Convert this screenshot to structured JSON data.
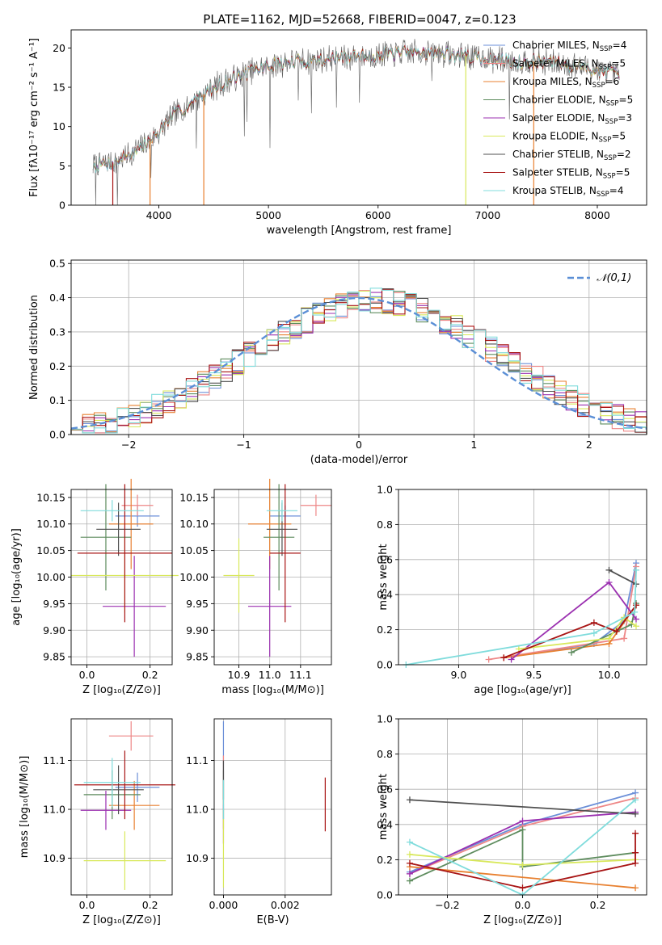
{
  "figure": {
    "title": "PLATE=1162, MJD=52668, FIBERID=0047, z=0.123"
  },
  "model_colors": [
    "#6b8fd8",
    "#ee8787",
    "#e88030",
    "#5e8c5e",
    "#9b30b0",
    "#d8e85a",
    "#505050",
    "#a81414",
    "#80dcdc"
  ],
  "chart_data": [
    {
      "id": "spectrum",
      "type": "line",
      "xlabel": "wavelength [Angstrom, rest frame]",
      "ylabel": "Flux [fλ10⁻¹⁷ erg cm⁻² s⁻¹ A⁻¹]",
      "xlim": [
        3200,
        8450
      ],
      "ylim": [
        0,
        22.3
      ],
      "xticks": [
        4000,
        5000,
        6000,
        7000,
        8000
      ],
      "yticks": [
        0,
        5,
        10,
        15,
        20
      ],
      "grid": false,
      "legend_position": "top-right",
      "series": [
        {
          "name": "Chabrier MILES, N_SSP=4",
          "legend_main": "Chabrier MILES, N",
          "legend_sub": "SSP",
          "legend_tail": "=4",
          "color": "#6b8fd8"
        },
        {
          "name": "Salpeter MILES, N_SSP=5",
          "legend_main": "Salpeter MILES, N",
          "legend_sub": "SSP",
          "legend_tail": "=5",
          "color": "#ee8787"
        },
        {
          "name": "Kroupa MILES, N_SSP=6",
          "legend_main": "Kroupa MILES, N",
          "legend_sub": "SSP",
          "legend_tail": "=6",
          "color": "#e88030"
        },
        {
          "name": "Chabrier ELODIE, N_SSP=5",
          "legend_main": "Chabrier ELODIE, N",
          "legend_sub": "SSP",
          "legend_tail": "=5",
          "color": "#5e8c5e"
        },
        {
          "name": "Salpeter ELODIE, N_SSP=3",
          "legend_main": "Salpeter ELODIE, N",
          "legend_sub": "SSP",
          "legend_tail": "=3",
          "color": "#9b30b0"
        },
        {
          "name": "Kroupa ELODIE, N_SSP=5",
          "legend_main": "Kroupa ELODIE, N",
          "legend_sub": "SSP",
          "legend_tail": "=5",
          "color": "#d8e85a"
        },
        {
          "name": "Chabrier STELIB, N_SSP=2",
          "legend_main": "Chabrier STELIB, N",
          "legend_sub": "SSP",
          "legend_tail": "=2",
          "color": "#505050"
        },
        {
          "name": "Salpeter STELIB, N_SSP=5",
          "legend_main": "Salpeter STELIB, N",
          "legend_sub": "SSP",
          "legend_tail": "=5",
          "color": "#a81414"
        },
        {
          "name": "Kroupa STELIB, N_SSP=4",
          "legend_main": "Kroupa STELIB, N",
          "legend_sub": "SSP",
          "legend_tail": "=4",
          "color": "#80dcdc"
        }
      ],
      "continuum": {
        "x": [
          3400,
          3600,
          3800,
          3950,
          4100,
          4300,
          4500,
          4700,
          4900,
          5100,
          5300,
          5500,
          5800,
          6100,
          6400,
          6600,
          6800,
          7000,
          7200,
          7400,
          7600,
          7800,
          8000,
          8200
        ],
        "y": [
          5.0,
          5.5,
          7.0,
          8.5,
          11.0,
          13.0,
          15.0,
          16.3,
          17.3,
          18.0,
          18.3,
          18.6,
          18.9,
          19.2,
          19.5,
          19.3,
          19.0,
          18.6,
          18.3,
          18.3,
          18.1,
          17.7,
          17.2,
          16.5
        ]
      },
      "drops": [
        {
          "x": 3580,
          "color": "#a81414"
        },
        {
          "x": 3920,
          "color": "#e88030"
        },
        {
          "x": 4410,
          "color": "#e88030"
        },
        {
          "x": 6800,
          "color": "#d8e85a"
        },
        {
          "x": 7420,
          "color": "#e88030"
        }
      ]
    },
    {
      "id": "residuals",
      "type": "bar",
      "xlabel": "(data-model)/error",
      "ylabel": "Normed distribution",
      "xlim": [
        -2.5,
        2.5
      ],
      "ylim": [
        0,
        0.51
      ],
      "xticks": [
        -2,
        -1,
        0,
        1,
        2
      ],
      "xticklabels": [
        "−2",
        "−1",
        "0",
        "1",
        "2"
      ],
      "yticks": [
        0,
        0.1,
        0.2,
        0.3,
        0.4,
        0.5
      ],
      "yticklabels": [
        "0.0",
        "0.1",
        "0.2",
        "0.3",
        "0.4",
        "0.5"
      ],
      "grid": true,
      "reference": {
        "name": "𝒩(0,1)",
        "mean": 0,
        "sigma": 1,
        "color": "#5b8fd6"
      },
      "legend_position": "top-right",
      "bins": [
        -2.5,
        -2.4,
        -2.3,
        -2.2,
        -2.1,
        -2.0,
        -1.9,
        -1.8,
        -1.7,
        -1.6,
        -1.5,
        -1.4,
        -1.3,
        -1.2,
        -1.1,
        -1.0,
        -0.9,
        -0.8,
        -0.7,
        -0.6,
        -0.5,
        -0.4,
        -0.3,
        -0.2,
        -0.1,
        0.0,
        0.1,
        0.2,
        0.3,
        0.4,
        0.5,
        0.6,
        0.7,
        0.8,
        0.9,
        1.0,
        1.1,
        1.2,
        1.3,
        1.4,
        1.5,
        1.6,
        1.7,
        1.8,
        1.9,
        2.0,
        2.1,
        2.2,
        2.3,
        2.4,
        2.5
      ],
      "base_values": [
        0.018,
        0.022,
        0.028,
        0.035,
        0.044,
        0.054,
        0.066,
        0.08,
        0.095,
        0.112,
        0.13,
        0.15,
        0.17,
        0.19,
        0.212,
        0.234,
        0.255,
        0.276,
        0.296,
        0.316,
        0.334,
        0.35,
        0.364,
        0.376,
        0.385,
        0.39,
        0.392,
        0.39,
        0.384,
        0.375,
        0.362,
        0.347,
        0.33,
        0.311,
        0.291,
        0.27,
        0.249,
        0.227,
        0.205,
        0.183,
        0.162,
        0.142,
        0.123,
        0.106,
        0.09,
        0.076,
        0.063,
        0.051,
        0.04,
        0.031
      ]
    },
    {
      "id": "age-vs-Z",
      "type": "scatter",
      "xlabel": "Z [log₁₀(Z/Z⊙)]",
      "ylabel": "age  [log₁₀(age/yr)]",
      "xlim": [
        -0.05,
        0.27
      ],
      "ylim": [
        9.835,
        10.165
      ],
      "xticks": [
        0.0,
        0.2
      ],
      "xticklabels": [
        "0.0",
        "0.2"
      ],
      "yticks": [
        9.85,
        9.9,
        9.95,
        10.0,
        10.05,
        10.1,
        10.15
      ],
      "yticklabels": [
        "9.85",
        "9.90",
        "9.95",
        "10.00",
        "10.05",
        "10.10",
        "10.15"
      ],
      "grid": true,
      "points": [
        {
          "x": 0.16,
          "xerr": 0.07,
          "y": 10.115,
          "yerr": 0.02
        },
        {
          "x": 0.16,
          "xerr": 0.05,
          "y": 10.135,
          "yerr": 0.02
        },
        {
          "x": 0.14,
          "xerr": 0.07,
          "y": 10.1,
          "yerr": 0.085
        },
        {
          "x": 0.06,
          "xerr": 0.08,
          "y": 10.075,
          "yerr": 0.1
        },
        {
          "x": 0.15,
          "xerr": 0.1,
          "y": 9.945,
          "yerr": 0.095
        },
        {
          "x": 0.12,
          "xerr": 0.17,
          "y": 10.003,
          "yerr": 0.07
        },
        {
          "x": 0.1,
          "xerr": 0.07,
          "y": 10.09,
          "yerr": 0.05
        },
        {
          "x": 0.12,
          "xerr": 0.15,
          "y": 10.045,
          "yerr": 0.13
        },
        {
          "x": 0.08,
          "xerr": 0.1,
          "y": 10.125,
          "yerr": 0.02
        }
      ]
    },
    {
      "id": "age-vs-mass",
      "type": "scatter",
      "xlabel": "mass [log₁₀(M/M⊙)]",
      "ylabel": "",
      "xlim": [
        10.82,
        11.2
      ],
      "ylim": [
        9.835,
        10.165
      ],
      "xticks": [
        10.9,
        11.0,
        11.1
      ],
      "xticklabels": [
        "10.9",
        "11.0",
        "11.1"
      ],
      "yticks": [
        9.85,
        9.9,
        9.95,
        10.0,
        10.05,
        10.1,
        10.15
      ],
      "yticklabels": [
        "9.85",
        "9.90",
        "9.95",
        "10.00",
        "10.05",
        "10.10",
        "10.15"
      ],
      "grid": true,
      "points": [
        {
          "x": 11.05,
          "xerr": 0.05,
          "y": 10.115,
          "yerr": 0.02
        },
        {
          "x": 11.15,
          "xerr": 0.05,
          "y": 10.135,
          "yerr": 0.02
        },
        {
          "x": 11.0,
          "xerr": 0.07,
          "y": 10.1,
          "yerr": 0.085
        },
        {
          "x": 11.03,
          "xerr": 0.05,
          "y": 10.075,
          "yerr": 0.1
        },
        {
          "x": 11.0,
          "xerr": 0.07,
          "y": 9.945,
          "yerr": 0.095
        },
        {
          "x": 10.9,
          "xerr": 0.05,
          "y": 10.003,
          "yerr": 0.07
        },
        {
          "x": 11.04,
          "xerr": 0.05,
          "y": 10.09,
          "yerr": 0.05
        },
        {
          "x": 11.05,
          "xerr": 0.05,
          "y": 10.045,
          "yerr": 0.13
        },
        {
          "x": 11.04,
          "xerr": 0.05,
          "y": 10.125,
          "yerr": 0.02
        }
      ]
    },
    {
      "id": "mass-weight-vs-age",
      "type": "line",
      "xlabel": "age  [log₁₀(age/yr)]",
      "ylabel": "mass weight",
      "xlim": [
        8.6,
        10.25
      ],
      "ylim": [
        0,
        1.0
      ],
      "xticks": [
        9.0,
        9.5,
        10.0
      ],
      "xticklabels": [
        "9.0",
        "9.5",
        "10.0"
      ],
      "yticks": [
        0,
        0.2,
        0.4,
        0.6,
        0.8,
        1.0
      ],
      "yticklabels": [
        "0.0",
        "0.2",
        "0.4",
        "0.6",
        "0.8",
        "1.0"
      ],
      "grid": true,
      "series": [
        {
          "x": [
            9.3,
            9.9,
            10.1,
            10.18
          ],
          "y": [
            0.04,
            0.12,
            0.25,
            0.58
          ]
        },
        {
          "x": [
            9.2,
            10.1,
            10.18
          ],
          "y": [
            0.03,
            0.15,
            0.56
          ]
        },
        {
          "x": [
            9.3,
            10.0,
            10.18
          ],
          "y": [
            0.04,
            0.12,
            0.34
          ]
        },
        {
          "x": [
            9.75,
            10.15,
            10.18
          ],
          "y": [
            0.07,
            0.23,
            0.35
          ]
        },
        {
          "x": [
            9.35,
            10.0,
            10.18
          ],
          "y": [
            0.03,
            0.47,
            0.26
          ]
        },
        {
          "x": [
            9.4,
            10.0,
            10.1,
            10.18
          ],
          "y": [
            0.09,
            0.15,
            0.27,
            0.22
          ]
        },
        {
          "x": [
            10.0,
            10.18
          ],
          "y": [
            0.54,
            0.46
          ]
        },
        {
          "x": [
            9.3,
            9.9,
            10.05,
            10.18
          ],
          "y": [
            0.04,
            0.24,
            0.19,
            0.34
          ]
        },
        {
          "x": [
            8.65,
            9.9,
            10.17,
            10.18
          ],
          "y": [
            0.0,
            0.18,
            0.3,
            0.54
          ]
        }
      ]
    },
    {
      "id": "mass-vs-Z",
      "type": "scatter",
      "xlabel": "Z [log₁₀(Z/Z⊙)]",
      "ylabel": "mass [log₁₀(M/M⊙)]",
      "xlim": [
        -0.05,
        0.27
      ],
      "ylim": [
        10.825,
        11.185
      ],
      "xticks": [
        0.0,
        0.2
      ],
      "xticklabels": [
        "0.0",
        "0.2"
      ],
      "yticks": [
        10.9,
        11.0,
        11.1
      ],
      "yticklabels": [
        "10.9",
        "11.0",
        "11.1"
      ],
      "grid": true,
      "points": [
        {
          "x": 0.16,
          "xerr": 0.07,
          "y": 11.045,
          "yerr": 0.03
        },
        {
          "x": 0.14,
          "xerr": 0.07,
          "y": 11.15,
          "yerr": 0.03
        },
        {
          "x": 0.15,
          "xerr": 0.08,
          "y": 11.008,
          "yerr": 0.05
        },
        {
          "x": 0.08,
          "xerr": 0.09,
          "y": 11.03,
          "yerr": 0.05
        },
        {
          "x": 0.06,
          "xerr": 0.08,
          "y": 10.998,
          "yerr": 0.04
        },
        {
          "x": 0.12,
          "xerr": 0.13,
          "y": 10.895,
          "yerr": 0.06
        },
        {
          "x": 0.1,
          "xerr": 0.08,
          "y": 11.04,
          "yerr": 0.05
        },
        {
          "x": 0.12,
          "xerr": 0.16,
          "y": 11.05,
          "yerr": 0.07
        },
        {
          "x": 0.08,
          "xerr": 0.09,
          "y": 11.055,
          "yerr": 0.05
        }
      ]
    },
    {
      "id": "mass-vs-EBV",
      "type": "scatter",
      "xlabel": "E(B-V)",
      "ylabel": "",
      "xlim": [
        -0.0003,
        0.0035
      ],
      "ylim": [
        10.825,
        11.185
      ],
      "xticks": [
        0.0,
        0.002
      ],
      "xticklabels": [
        "0.000",
        "0.002"
      ],
      "yticks": [
        10.9,
        11.0,
        11.1
      ],
      "yticklabels": [
        "10.9",
        "11.0",
        "11.1"
      ],
      "grid": true,
      "points": [
        {
          "x": 0.0,
          "xerr": 0.0,
          "y": 11.1,
          "yerr": 0.08
        },
        {
          "x": 0.0,
          "xerr": 0.0,
          "y": 11.06,
          "yerr": 0.05
        },
        {
          "x": 0.0,
          "xerr": 0.0,
          "y": 11.01,
          "yerr": 0.05
        },
        {
          "x": 0.0,
          "xerr": 0.0,
          "y": 11.03,
          "yerr": 0.05
        },
        {
          "x": 0.0,
          "xerr": 0.0,
          "y": 10.97,
          "yerr": 0.04
        },
        {
          "x": 0.0,
          "xerr": 0.0,
          "y": 10.92,
          "yerr": 0.08
        },
        {
          "x": 0.0,
          "xerr": 0.0,
          "y": 11.06,
          "yerr": 0.04
        },
        {
          "x": 0.0033,
          "xerr": 0.0,
          "y": 11.01,
          "yerr": 0.055
        },
        {
          "x": 0.0,
          "xerr": 0.0,
          "y": 11.02,
          "yerr": 0.04
        }
      ]
    },
    {
      "id": "mass-weight-vs-Z",
      "type": "line",
      "xlabel": "Z [log₁₀(Z/Z⊙)]",
      "ylabel": "mass weight",
      "xlim": [
        -0.33,
        0.33
      ],
      "ylim": [
        0,
        1.0
      ],
      "xticks": [
        -0.2,
        0.0,
        0.2
      ],
      "xticklabels": [
        "−0.2",
        "0.0",
        "0.2"
      ],
      "yticks": [
        0,
        0.2,
        0.4,
        0.6,
        0.8,
        1.0
      ],
      "yticklabels": [
        "0.0",
        "0.2",
        "0.4",
        "0.6",
        "0.8",
        "1.0"
      ],
      "grid": true,
      "series": [
        {
          "x": [
            -0.3,
            0.0,
            0.3
          ],
          "y": [
            0.13,
            0.4,
            0.58
          ]
        },
        {
          "x": [
            -0.3,
            0.0,
            0.3
          ],
          "y": [
            0.12,
            0.39,
            0.55
          ]
        },
        {
          "x": [
            -0.3,
            0.3
          ],
          "y": [
            0.16,
            0.04
          ]
        },
        {
          "x": [
            -0.3,
            0.0,
            0.0,
            0.3
          ],
          "y": [
            0.08,
            0.37,
            0.16,
            0.24
          ]
        },
        {
          "x": [
            -0.3,
            0.0,
            0.3
          ],
          "y": [
            0.12,
            0.42,
            0.47
          ]
        },
        {
          "x": [
            -0.3,
            0.0,
            0.3
          ],
          "y": [
            0.23,
            0.17,
            0.2
          ]
        },
        {
          "x": [
            -0.3,
            0.3
          ],
          "y": [
            0.54,
            0.46
          ]
        },
        {
          "x": [
            -0.3,
            0.0,
            0.3,
            0.3,
            0.3
          ],
          "y": [
            0.18,
            0.04,
            0.18,
            0.35,
            0.24
          ]
        },
        {
          "x": [
            -0.3,
            0.0,
            0.3
          ],
          "y": [
            0.3,
            0.0,
            0.54
          ]
        }
      ]
    }
  ]
}
